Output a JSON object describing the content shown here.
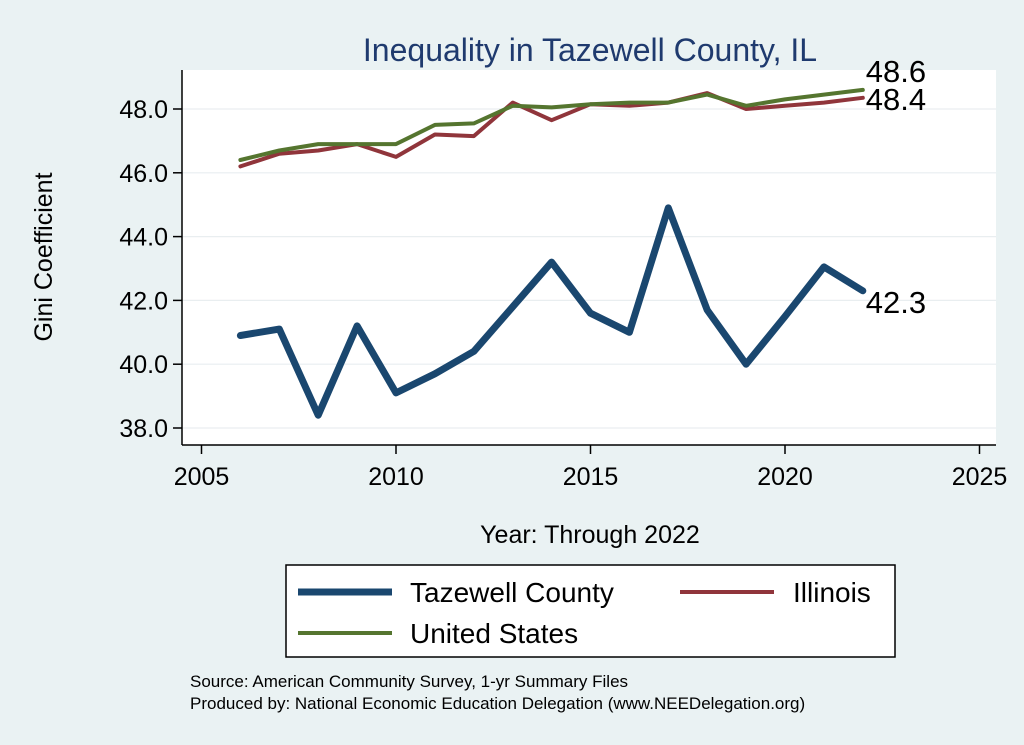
{
  "chart_data": {
    "type": "line",
    "title": "Inequality in Tazewell County, IL",
    "xlabel": "Year: Through 2022",
    "ylabel": "Gini Coefficient",
    "xlim": [
      2005,
      2025
    ],
    "ylim": [
      37.8,
      49.2
    ],
    "x_ticks": [
      2005,
      2010,
      2015,
      2020,
      2025
    ],
    "y_ticks": [
      38.0,
      40.0,
      42.0,
      44.0,
      46.0,
      48.0
    ],
    "x_tick_labels": [
      "2005",
      "2010",
      "2015",
      "2020",
      "2025"
    ],
    "y_tick_labels": [
      "38.0",
      "40.0",
      "42.0",
      "44.0",
      "46.0",
      "48.0"
    ],
    "grid": true,
    "x": [
      2006,
      2007,
      2008,
      2009,
      2010,
      2011,
      2012,
      2013,
      2014,
      2015,
      2016,
      2017,
      2018,
      2019,
      2020,
      2021,
      2022
    ],
    "series": [
      {
        "name": "Tazewell County",
        "color": "#1a476f",
        "values": [
          40.9,
          41.1,
          38.4,
          41.2,
          39.1,
          39.7,
          40.4,
          41.8,
          43.2,
          41.6,
          41.0,
          44.9,
          41.7,
          40.0,
          41.5,
          43.05,
          42.3
        ],
        "end_label": "42.3"
      },
      {
        "name": "Illinois",
        "color": "#90353b",
        "values": [
          46.2,
          46.6,
          46.7,
          46.9,
          46.5,
          47.2,
          47.15,
          48.2,
          47.65,
          48.15,
          48.1,
          48.2,
          48.5,
          48.0,
          48.1,
          48.2,
          48.35
        ],
        "end_label": "48.4"
      },
      {
        "name": "United States",
        "color": "#55752f",
        "values": [
          46.4,
          46.7,
          46.9,
          46.9,
          46.9,
          47.5,
          47.55,
          48.1,
          48.05,
          48.15,
          48.2,
          48.2,
          48.45,
          48.1,
          48.3,
          48.45,
          48.6
        ],
        "end_label": "48.6"
      }
    ],
    "legend": {
      "entries": [
        "Tazewell County",
        "Illinois",
        "United States"
      ],
      "placement": "bottom"
    },
    "notes": [
      "Source: American Community Survey, 1-yr Summary Files",
      "Produced by: National Economic Education Delegation (www.NEEDelegation.org)"
    ]
  }
}
